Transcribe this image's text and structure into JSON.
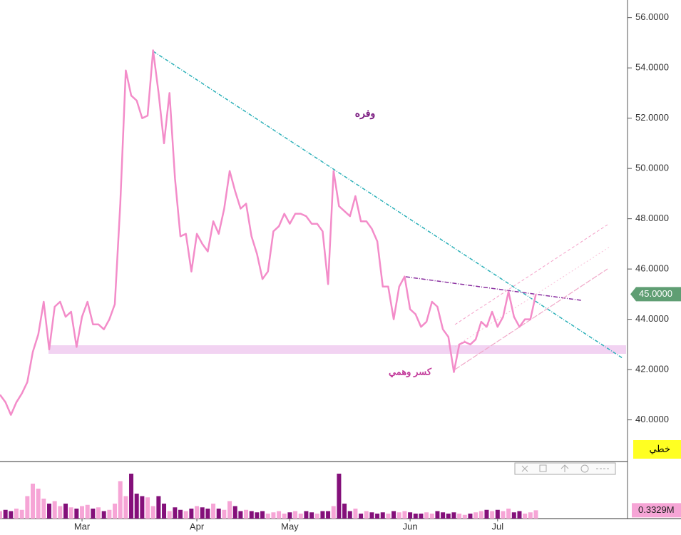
{
  "chart_data": {
    "type": "line",
    "values": [
      41.0,
      40.7,
      40.2,
      40.7,
      41.05,
      41.5,
      42.7,
      43.4,
      44.7,
      42.8,
      44.5,
      44.7,
      44.1,
      44.3,
      42.9,
      44.1,
      44.7,
      43.8,
      43.8,
      43.6,
      44.0,
      44.6,
      48.6,
      53.9,
      52.9,
      52.7,
      52.0,
      52.1,
      54.7,
      53.0,
      51.0,
      53.0,
      49.6,
      47.3,
      47.4,
      45.9,
      47.4,
      47.0,
      46.7,
      47.9,
      47.4,
      48.4,
      49.9,
      49.1,
      48.4,
      48.6,
      47.3,
      46.6,
      45.6,
      45.9,
      47.5,
      47.7,
      48.2,
      47.8,
      48.2,
      48.2,
      48.1,
      47.8,
      47.8,
      47.5,
      45.4,
      49.9,
      48.5,
      48.3,
      48.1,
      48.9,
      47.9,
      47.9,
      47.6,
      47.1,
      45.3,
      45.3,
      44.0,
      45.3,
      45.7,
      44.4,
      44.2,
      43.7,
      43.9,
      44.7,
      44.5,
      43.6,
      43.3,
      41.9,
      43.0,
      43.1,
      43.0,
      43.2,
      43.9,
      43.7,
      44.3,
      43.7,
      44.1,
      45.1,
      44.1,
      43.7,
      44.0,
      44.0,
      45.0
    ],
    "color": "#f38cc9",
    "xlim": [
      0,
      114.5
    ],
    "xticks": [
      {
        "value": 15,
        "label": "Mar"
      },
      {
        "value": 36,
        "label": "Apr"
      },
      {
        "value": 53,
        "label": "May"
      },
      {
        "value": 75,
        "label": "Jun"
      },
      {
        "value": 91,
        "label": "Jul"
      }
    ],
    "ylim": [
      38.4,
      56.7
    ],
    "yticks": [
      {
        "value": 56,
        "label": "56.0000"
      },
      {
        "value": 54,
        "label": "54.0000"
      },
      {
        "value": 52,
        "label": "52.0000"
      },
      {
        "value": 50,
        "label": "50.0000"
      },
      {
        "value": 48,
        "label": "48.0000"
      },
      {
        "value": 46,
        "label": "46.0000"
      },
      {
        "value": 44,
        "label": "44.0000"
      },
      {
        "value": 42,
        "label": "42.0000"
      },
      {
        "value": 40,
        "label": "40.0000"
      }
    ],
    "last_price": {
      "value": 45,
      "label": "45.0000"
    },
    "annotations": [
      "وفره",
      "كسر وهمي"
    ],
    "chart_style": "خطي",
    "volume": {
      "values": [
        0.3,
        0.35,
        0.3,
        0.4,
        0.35,
        0.9,
        1.4,
        1.2,
        0.8,
        0.6,
        0.7,
        0.5,
        0.6,
        0.45,
        0.4,
        0.5,
        0.55,
        0.4,
        0.45,
        0.3,
        0.35,
        0.6,
        1.5,
        0.9,
        1.8,
        1.0,
        0.9,
        0.85,
        0.5,
        0.9,
        0.6,
        0.3,
        0.45,
        0.35,
        0.3,
        0.4,
        0.5,
        0.45,
        0.4,
        0.6,
        0.4,
        0.35,
        0.7,
        0.5,
        0.3,
        0.35,
        0.3,
        0.25,
        0.3,
        0.2,
        0.25,
        0.3,
        0.2,
        0.25,
        0.3,
        0.2,
        0.3,
        0.25,
        0.2,
        0.3,
        0.3,
        0.5,
        1.8,
        0.6,
        0.3,
        0.4,
        0.2,
        0.3,
        0.25,
        0.2,
        0.25,
        0.2,
        0.3,
        0.25,
        0.3,
        0.25,
        0.2,
        0.2,
        0.25,
        0.2,
        0.3,
        0.25,
        0.2,
        0.25,
        0.2,
        0.15,
        0.2,
        0.25,
        0.3,
        0.35,
        0.3,
        0.35,
        0.3,
        0.4,
        0.25,
        0.3,
        0.2,
        0.25,
        0.3329
      ],
      "ylim": [
        0,
        2.2
      ],
      "up_color": "#f6a5d6",
      "down_color": "#84107a",
      "last": {
        "value": 0.3329,
        "label": "0.3329M"
      }
    }
  }
}
